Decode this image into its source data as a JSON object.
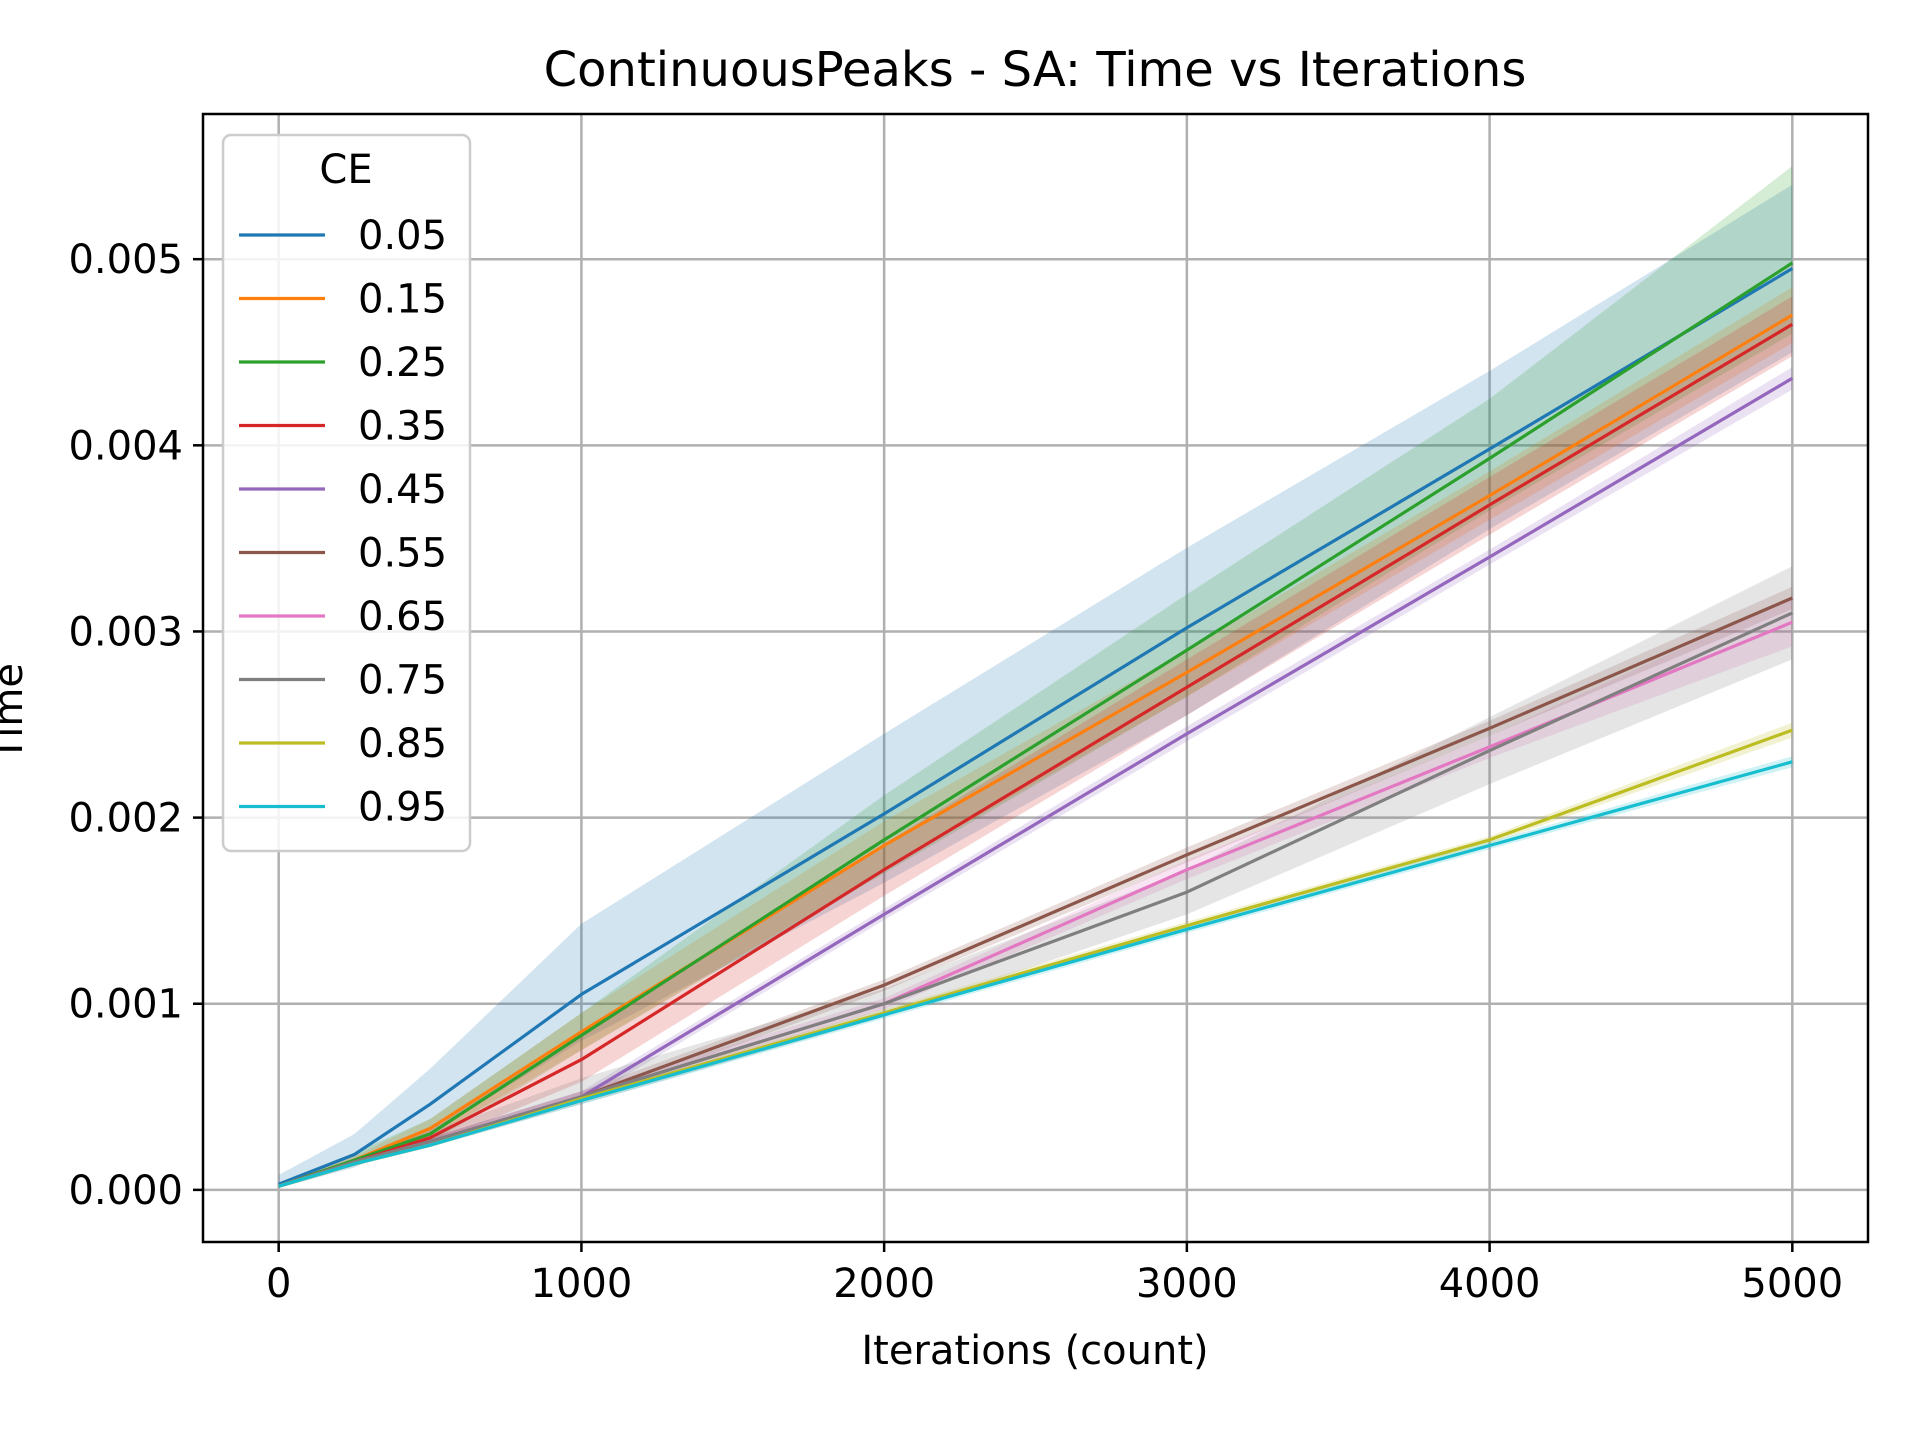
{
  "chart_data": {
    "type": "line",
    "title": "ContinuousPeaks - SA: Time vs Iterations",
    "xlabel": "Iterations (count)",
    "ylabel": "Time",
    "xlim": [
      -250,
      5250
    ],
    "ylim": [
      -0.00028,
      0.00578
    ],
    "xticks": [
      0,
      1000,
      2000,
      3000,
      4000,
      5000
    ],
    "xtick_labels": [
      "0",
      "1000",
      "2000",
      "3000",
      "4000",
      "5000"
    ],
    "yticks": [
      0,
      0.001,
      0.002,
      0.003,
      0.004,
      0.005
    ],
    "ytick_labels": [
      "0.000",
      "0.001",
      "0.002",
      "0.003",
      "0.004",
      "0.005"
    ],
    "grid": true,
    "legend": {
      "title": "CE",
      "position": "upper-left"
    },
    "x": [
      0,
      250,
      500,
      1000,
      2000,
      3000,
      4000,
      5000
    ],
    "series": [
      {
        "name": "0.05",
        "color": "#1f77b4",
        "values": [
          3e-05,
          0.00019,
          0.00046,
          0.00105,
          0.00202,
          0.00302,
          0.00398,
          0.00495
        ],
        "band_lower": [
          1e-05,
          0.00012,
          0.0003,
          0.0008,
          0.00165,
          0.00255,
          0.00355,
          0.0045
        ],
        "band_upper": [
          8e-05,
          0.0003,
          0.00065,
          0.00143,
          0.00245,
          0.00345,
          0.0044,
          0.0054
        ]
      },
      {
        "name": "0.15",
        "color": "#ff7f0e",
        "values": [
          2e-05,
          0.00016,
          0.00033,
          0.00085,
          0.00185,
          0.00278,
          0.00373,
          0.0047
        ],
        "band_lower": [
          1e-05,
          0.00014,
          0.00028,
          0.00075,
          0.00172,
          0.00265,
          0.0036,
          0.00455
        ],
        "band_upper": [
          3e-05,
          0.00018,
          0.00038,
          0.00095,
          0.00198,
          0.0029,
          0.00386,
          0.00485
        ]
      },
      {
        "name": "0.25",
        "color": "#2ca02c",
        "values": [
          2e-05,
          0.00016,
          0.0003,
          0.00083,
          0.00188,
          0.0029,
          0.00393,
          0.00498
        ],
        "band_lower": [
          1e-05,
          0.00013,
          0.00025,
          0.00075,
          0.0017,
          0.00265,
          0.00365,
          0.0046
        ],
        "band_upper": [
          4e-05,
          0.0002,
          0.00038,
          0.00095,
          0.00212,
          0.0032,
          0.00425,
          0.0055
        ]
      },
      {
        "name": "0.35",
        "color": "#d62728",
        "values": [
          2e-05,
          0.00015,
          0.00028,
          0.0007,
          0.00172,
          0.0027,
          0.00368,
          0.00465
        ],
        "band_lower": [
          1e-05,
          0.00013,
          0.00024,
          0.00058,
          0.00158,
          0.00255,
          0.00352,
          0.00448
        ],
        "band_upper": [
          3e-05,
          0.00017,
          0.00034,
          0.00083,
          0.00186,
          0.00285,
          0.00383,
          0.0048
        ]
      },
      {
        "name": "0.45",
        "color": "#9467bd",
        "values": [
          2e-05,
          0.00015,
          0.00026,
          0.0005,
          0.00148,
          0.00245,
          0.0034,
          0.00436
        ],
        "band_lower": [
          1e-05,
          0.00014,
          0.00024,
          0.00047,
          0.00145,
          0.00241,
          0.00336,
          0.0043
        ],
        "band_upper": [
          3e-05,
          0.00016,
          0.00028,
          0.00053,
          0.00151,
          0.00249,
          0.00344,
          0.00442
        ]
      },
      {
        "name": "0.55",
        "color": "#8c564b",
        "values": [
          2e-05,
          0.00015,
          0.00026,
          0.0005,
          0.0011,
          0.0018,
          0.00248,
          0.00318
        ],
        "band_lower": [
          1e-05,
          0.00014,
          0.00024,
          0.00047,
          0.00107,
          0.00176,
          0.00244,
          0.00312
        ],
        "band_upper": [
          3e-05,
          0.00016,
          0.00028,
          0.00053,
          0.00113,
          0.00184,
          0.00252,
          0.00324
        ]
      },
      {
        "name": "0.65",
        "color": "#e377c2",
        "values": [
          2e-05,
          0.00015,
          0.00026,
          0.0005,
          0.001,
          0.00172,
          0.00238,
          0.00305
        ],
        "band_lower": [
          1e-05,
          0.00014,
          0.00024,
          0.00047,
          0.00097,
          0.00167,
          0.00232,
          0.00292
        ],
        "band_upper": [
          3e-05,
          0.00016,
          0.00028,
          0.00053,
          0.00103,
          0.00177,
          0.00244,
          0.00318
        ]
      },
      {
        "name": "0.75",
        "color": "#7f7f7f",
        "values": [
          2e-05,
          0.00015,
          0.00026,
          0.0005,
          0.001,
          0.0016,
          0.00236,
          0.0031
        ],
        "band_lower": [
          1e-05,
          0.00013,
          0.00023,
          0.00046,
          0.00093,
          0.00148,
          0.00218,
          0.00285
        ],
        "band_upper": [
          3e-05,
          0.00017,
          0.00031,
          0.0006,
          0.00108,
          0.00172,
          0.00254,
          0.00335
        ]
      },
      {
        "name": "0.85",
        "color": "#bcbd22",
        "values": [
          2e-05,
          0.00014,
          0.00024,
          0.00049,
          0.00095,
          0.00142,
          0.00188,
          0.00247
        ],
        "band_lower": [
          1e-05,
          0.00013,
          0.00023,
          0.00047,
          0.00093,
          0.0014,
          0.00186,
          0.00243
        ],
        "band_upper": [
          3e-05,
          0.00015,
          0.00025,
          0.00051,
          0.00097,
          0.00144,
          0.0019,
          0.00251
        ]
      },
      {
        "name": "0.95",
        "color": "#17becf",
        "values": [
          2e-05,
          0.00014,
          0.00024,
          0.00048,
          0.00094,
          0.0014,
          0.00185,
          0.0023
        ],
        "band_lower": [
          1e-05,
          0.00013,
          0.00023,
          0.00046,
          0.00092,
          0.00138,
          0.00183,
          0.00227
        ],
        "band_upper": [
          3e-05,
          0.00015,
          0.00025,
          0.0005,
          0.00096,
          0.00142,
          0.00187,
          0.00233
        ]
      }
    ]
  }
}
